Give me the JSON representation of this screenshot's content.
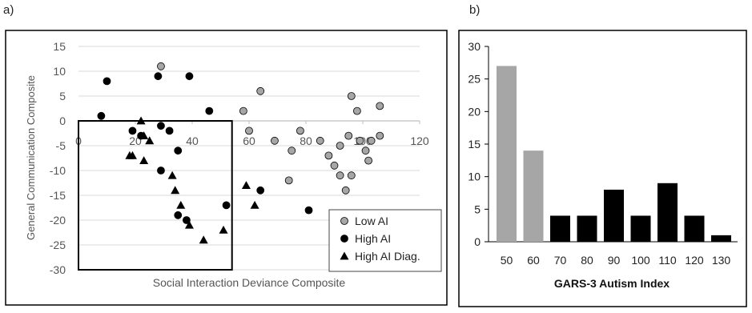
{
  "panel_a_label": "a)",
  "panel_b_label": "b)",
  "chart_data": [
    {
      "type": "scatter",
      "xlabel": "Social Interaction Deviance Composite",
      "ylabel": "General Communication Composite",
      "xlim": [
        0,
        120
      ],
      "ylim": [
        -30,
        15
      ],
      "x_ticks": [
        "0",
        "20",
        "40",
        "60",
        "80",
        "100",
        "120"
      ],
      "y_ticks": [
        "15",
        "10",
        "5",
        "0",
        "-5",
        "-10",
        "-15",
        "-20",
        "-25",
        "-30"
      ],
      "grid": true,
      "legend_position": "bottom-right",
      "highlight_region": {
        "x": [
          0,
          54
        ],
        "y": [
          -30,
          0
        ]
      },
      "series": [
        {
          "name": "Low AI",
          "marker": "circle",
          "color": "#a6a6a6",
          "points": [
            [
              29,
              11
            ],
            [
              64,
              6
            ],
            [
              58,
              2
            ],
            [
              60,
              -2
            ],
            [
              69,
              -4
            ],
            [
              75,
              -6
            ],
            [
              74,
              -12
            ],
            [
              78,
              -2
            ],
            [
              85,
              -4
            ],
            [
              88,
              -7
            ],
            [
              90,
              -9
            ],
            [
              92,
              -11
            ],
            [
              92,
              -5
            ],
            [
              94,
              -14
            ],
            [
              95,
              -3
            ],
            [
              96,
              -11
            ],
            [
              96,
              5
            ],
            [
              98,
              2
            ],
            [
              99,
              -4
            ],
            [
              101,
              -6
            ],
            [
              102,
              -8
            ],
            [
              103,
              -4
            ],
            [
              106,
              3
            ],
            [
              106,
              -3
            ]
          ]
        },
        {
          "name": "High AI",
          "marker": "circle",
          "color": "#000000",
          "points": [
            [
              10,
              8
            ],
            [
              8,
              1
            ],
            [
              19,
              -2
            ],
            [
              22,
              -3
            ],
            [
              28,
              9
            ],
            [
              29,
              -1
            ],
            [
              32,
              -2
            ],
            [
              35,
              -6
            ],
            [
              39,
              9
            ],
            [
              46,
              2
            ],
            [
              29,
              -10
            ],
            [
              35,
              -19
            ],
            [
              38,
              -20
            ],
            [
              52,
              -17
            ],
            [
              64,
              -14
            ],
            [
              81,
              -18
            ]
          ]
        },
        {
          "name": "High AI Diag.",
          "marker": "triangle",
          "color": "#000000",
          "points": [
            [
              22,
              0
            ],
            [
              23,
              -3
            ],
            [
              25,
              -4
            ],
            [
              18,
              -7
            ],
            [
              19,
              -7
            ],
            [
              23,
              -8
            ],
            [
              33,
              -11
            ],
            [
              34,
              -14
            ],
            [
              36,
              -17
            ],
            [
              39,
              -21
            ],
            [
              44,
              -24
            ],
            [
              51,
              -22
            ],
            [
              59,
              -13
            ],
            [
              62,
              -17
            ]
          ]
        }
      ]
    },
    {
      "type": "bar",
      "xlabel": "GARS-3 Autism Index",
      "ylabel": "",
      "ylim": [
        0,
        30
      ],
      "y_ticks": [
        "30",
        "25",
        "20",
        "15",
        "10",
        "5",
        "0"
      ],
      "categories": [
        "50",
        "60",
        "70",
        "80",
        "90",
        "100",
        "110",
        "120",
        "130"
      ],
      "values": [
        27,
        14,
        4,
        4,
        8,
        4,
        9,
        4,
        1
      ],
      "bar_colors": [
        "#a6a6a6",
        "#a6a6a6",
        "#000000",
        "#000000",
        "#000000",
        "#000000",
        "#000000",
        "#000000",
        "#000000"
      ],
      "grid": false
    }
  ]
}
